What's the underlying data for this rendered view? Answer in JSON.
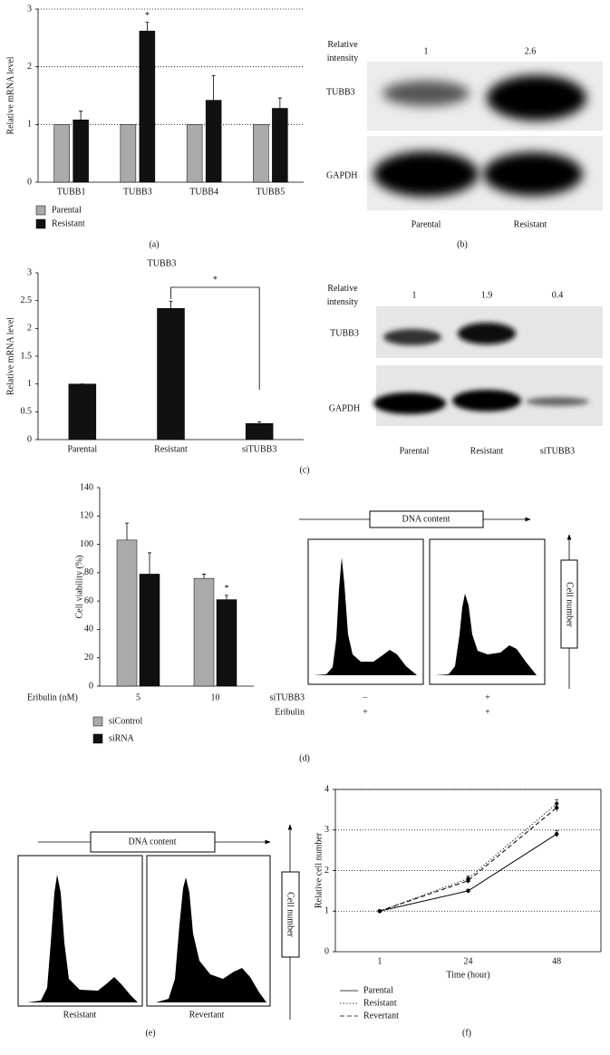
{
  "chart_data": [
    {
      "type": "bar",
      "ylabel": "Relative mRNA level",
      "categories": [
        "TUBB1",
        "TUBB3",
        "TUBB4",
        "TUBB5"
      ],
      "series": [
        {
          "name": "Parental",
          "color": "#aaaaaa",
          "values": [
            1,
            1,
            1,
            1
          ]
        },
        {
          "name": "Resistant",
          "color": "#111111",
          "values": [
            1.08,
            2.62,
            1.42,
            1.28
          ],
          "errors": [
            0.15,
            0.15,
            0.43,
            0.18
          ]
        }
      ],
      "ylim": [
        0,
        3
      ],
      "yticks": [
        0,
        1,
        2,
        3
      ],
      "grid": true,
      "annotation": "*"
    },
    {
      "type": "bar",
      "title": "TUBB3",
      "ylabel": "Relative mRNA level",
      "categories": [
        "Parental",
        "Resistant",
        "siTUBB3"
      ],
      "values": [
        1,
        2.36,
        0.29
      ],
      "errors": [
        0,
        0.13,
        0.03
      ],
      "color": "#111111",
      "ylim": [
        0,
        3
      ],
      "yticks": [
        0,
        0.5,
        1,
        1.5,
        2,
        2.5,
        3
      ],
      "grid": false,
      "annotation": "*"
    },
    {
      "type": "bar",
      "ylabel": "Cell viability (%)",
      "xlabel": "Eribulin (nM)",
      "categories": [
        "5",
        "10"
      ],
      "series": [
        {
          "name": "siControl",
          "color": "#aaaaaa",
          "values": [
            103,
            76
          ],
          "errors": [
            12,
            3
          ]
        },
        {
          "name": "siRNA",
          "color": "#111111",
          "values": [
            79,
            61
          ],
          "errors": [
            15,
            3
          ]
        }
      ],
      "ylim": [
        0,
        140
      ],
      "yticks": [
        0,
        20,
        40,
        60,
        80,
        100,
        120,
        140
      ],
      "grid": false,
      "annotation": "*"
    },
    {
      "type": "line",
      "xlabel": "Time (hour)",
      "ylabel": "Relative cell number",
      "categories": [
        "1",
        "24",
        "48"
      ],
      "series": [
        {
          "name": "Parental",
          "color": "#000000",
          "line_style": "solid",
          "values": [
            1,
            1.5,
            2.9
          ],
          "errors": [
            0.02,
            0.04,
            0.08
          ]
        },
        {
          "name": "Resistant",
          "color": "#333333",
          "line_style": "dotted",
          "values": [
            1,
            1.8,
            3.65
          ],
          "errors": [
            0.02,
            0.06,
            0.1
          ]
        },
        {
          "name": "Revertant",
          "color": "#000000",
          "line_style": "dashed",
          "values": [
            1,
            1.75,
            3.55
          ],
          "errors": [
            0.02,
            0.06,
            0.1
          ]
        }
      ],
      "ylim": [
        0,
        4
      ],
      "yticks": [
        0,
        1,
        2,
        3,
        4
      ],
      "grid": true
    }
  ],
  "blots": [
    {
      "intensity_label": "Relative intensity",
      "intensities": [
        1,
        2.6
      ],
      "bands": [
        "TUBB3",
        "GAPDH"
      ],
      "lanes": [
        "Parental",
        "Resistant"
      ]
    },
    {
      "intensity_label": "Relative intensity",
      "intensities": [
        1,
        1.9,
        0.4
      ],
      "bands": [
        "TUBB3",
        "GAPDH"
      ],
      "lanes": [
        "Parental",
        "Resistant",
        "siTUBB3"
      ]
    }
  ],
  "flow": [
    {
      "x_axis": "DNA content",
      "y_axis": "Cell number",
      "conditions": [
        {
          "name": "siTUBB3",
          "values": [
            "−",
            "+"
          ]
        },
        {
          "name": "Eribulin",
          "values": [
            "+",
            "+"
          ]
        }
      ]
    },
    {
      "x_axis": "DNA content",
      "y_axis": "Cell number",
      "samples": [
        "Resistant",
        "Revertant"
      ]
    }
  ],
  "panel_labels": [
    "(a)",
    "(b)",
    "(c)",
    "(d)",
    "(e)",
    "(f)"
  ]
}
